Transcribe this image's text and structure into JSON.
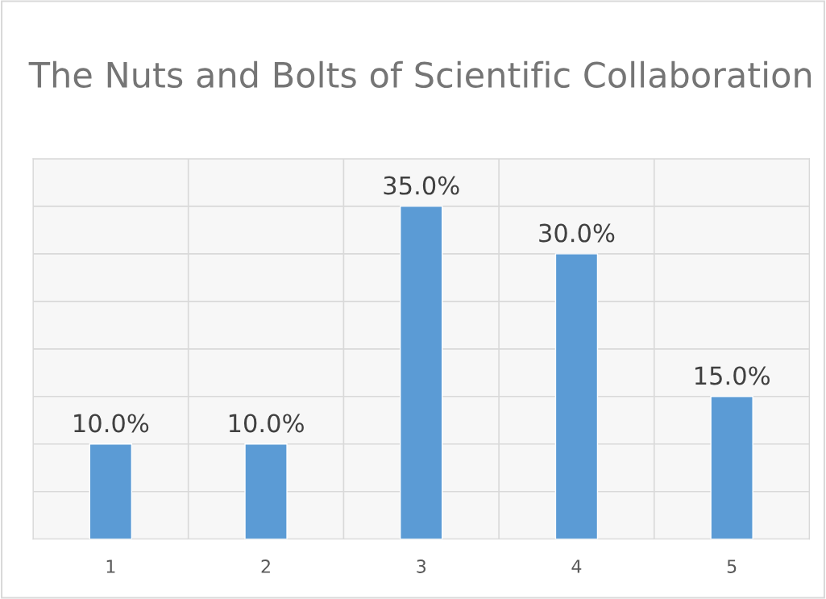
{
  "chart_data": {
    "type": "bar",
    "title": "The Nuts and Bolts of Scientific Collaboration",
    "categories": [
      "1",
      "2",
      "3",
      "4",
      "5"
    ],
    "values": [
      10,
      10,
      35,
      30,
      15
    ],
    "value_labels": [
      "10.0%",
      "10.0%",
      "35.0%",
      "30.0%",
      "15.0%"
    ],
    "color": "#5b9bd5",
    "ylim": [
      0,
      40
    ],
    "yticks": [
      {
        "value": 0,
        "label": null
      },
      {
        "value": 5,
        "label": null
      },
      {
        "value": 10,
        "label": null
      },
      {
        "value": 15,
        "label": null
      },
      {
        "value": 20,
        "label": null
      },
      {
        "value": 25,
        "label": null
      },
      {
        "value": 30,
        "label": null
      },
      {
        "value": 35,
        "label": null
      },
      {
        "value": 40,
        "label": null
      }
    ],
    "tick_labels": "x",
    "grid": true
  }
}
